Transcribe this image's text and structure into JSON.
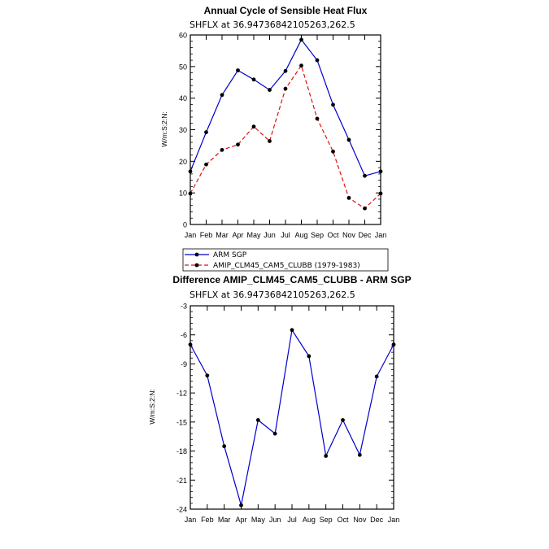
{
  "chart_data": [
    {
      "type": "line",
      "title": "Annual Cycle of Sensible Heat Flux",
      "subtitle": "SHFLX at 36.94736842105263,262.5",
      "ylabel": "W/m:S:2:N:",
      "xlabel": "",
      "categories": [
        "Jan",
        "Feb",
        "Mar",
        "Apr",
        "May",
        "Jun",
        "Jul",
        "Aug",
        "Sep",
        "Oct",
        "Nov",
        "Dec",
        "Jan"
      ],
      "ylim": [
        0,
        60
      ],
      "yticks": [
        0,
        10,
        20,
        30,
        40,
        50,
        60
      ],
      "series": [
        {
          "name": "ARM SGP",
          "color": "#0000cc",
          "dash": "solid",
          "values": [
            16.8,
            29.2,
            41.0,
            48.8,
            45.9,
            42.6,
            48.6,
            58.5,
            52.0,
            37.9,
            26.8,
            15.4,
            16.8
          ]
        },
        {
          "name": "AMIP_CLM45_CAM5_CLUBB (1979-1983)",
          "color": "#dd1111",
          "dash": "dashed",
          "values": [
            9.8,
            19.0,
            23.6,
            25.3,
            31.0,
            26.4,
            43.0,
            50.3,
            33.5,
            23.1,
            8.4,
            5.1,
            9.8
          ]
        }
      ],
      "legend": "bottom"
    },
    {
      "type": "line",
      "title": "Difference AMIP_CLM45_CAM5_CLUBB - ARM SGP",
      "subtitle": "SHFLX at 36.94736842105263,262.5",
      "ylabel": "W/m:S:2:N:",
      "xlabel": "",
      "categories": [
        "Jan",
        "Feb",
        "Mar",
        "Apr",
        "May",
        "Jun",
        "Jul",
        "Aug",
        "Sep",
        "Oct",
        "Nov",
        "Dec",
        "Jan"
      ],
      "ylim": [
        -24,
        -3
      ],
      "yticks": [
        -24,
        -21,
        -18,
        -15,
        -12,
        -9,
        -6,
        -3
      ],
      "series": [
        {
          "color": "#0000cc",
          "dash": "solid",
          "values": [
            -7.0,
            -10.2,
            -17.5,
            -23.6,
            -14.8,
            -16.2,
            -5.5,
            -8.2,
            -18.5,
            -14.8,
            -18.4,
            -10.3,
            -7.0
          ]
        }
      ]
    }
  ]
}
